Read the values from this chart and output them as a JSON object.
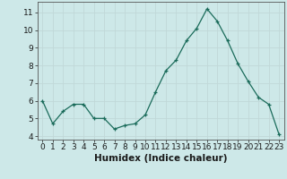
{
  "x": [
    0,
    1,
    2,
    3,
    4,
    5,
    6,
    7,
    8,
    9,
    10,
    11,
    12,
    13,
    14,
    15,
    16,
    17,
    18,
    19,
    20,
    21,
    22,
    23
  ],
  "y": [
    6.0,
    4.7,
    5.4,
    5.8,
    5.8,
    5.0,
    5.0,
    4.4,
    4.6,
    4.7,
    5.2,
    6.5,
    7.7,
    8.3,
    9.4,
    10.1,
    11.2,
    10.5,
    9.4,
    8.1,
    7.1,
    6.2,
    5.8,
    4.1
  ],
  "xlabel": "Humidex (Indice chaleur)",
  "ylim": [
    3.8,
    11.6
  ],
  "xlim": [
    -0.5,
    23.5
  ],
  "yticks": [
    4,
    5,
    6,
    7,
    8,
    9,
    10,
    11
  ],
  "xticks": [
    0,
    1,
    2,
    3,
    4,
    5,
    6,
    7,
    8,
    9,
    10,
    11,
    12,
    13,
    14,
    15,
    16,
    17,
    18,
    19,
    20,
    21,
    22,
    23
  ],
  "line_color": "#1a6b5a",
  "marker_size": 2.5,
  "bg_color": "#cde8e8",
  "grid_color": "#c0d8d8",
  "tick_label_fontsize": 6.5,
  "xlabel_fontsize": 7.5
}
